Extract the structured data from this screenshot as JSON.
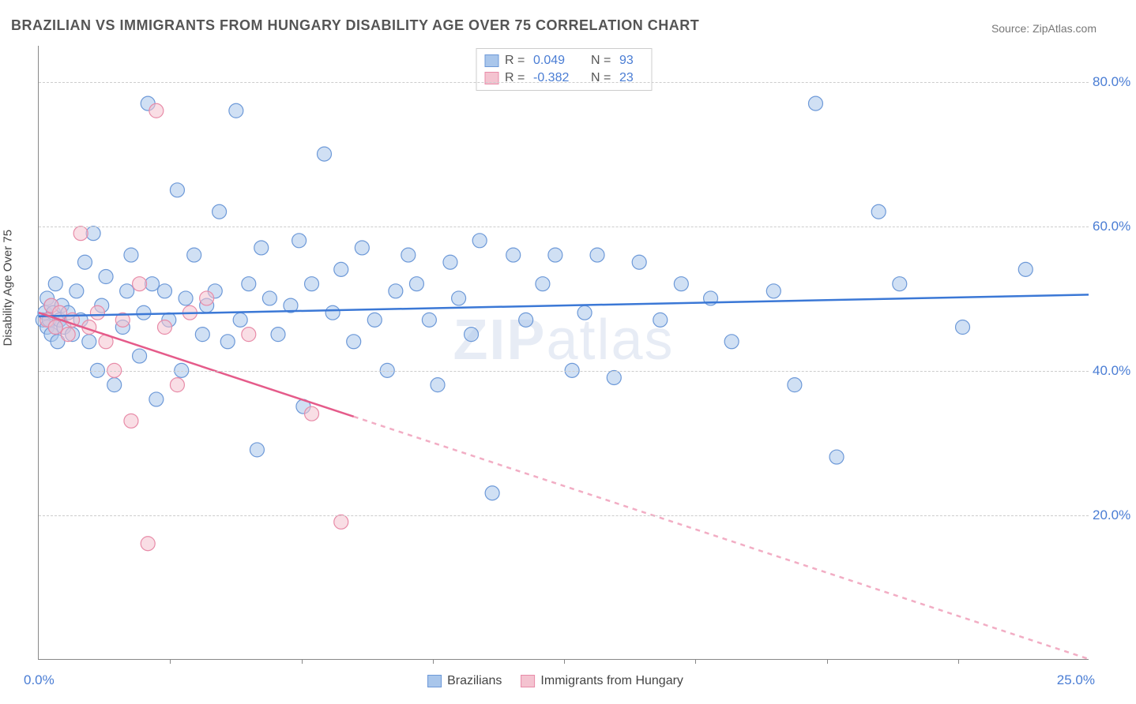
{
  "title": "BRAZILIAN VS IMMIGRANTS FROM HUNGARY DISABILITY AGE OVER 75 CORRELATION CHART",
  "source": "Source: ZipAtlas.com",
  "ylabel": "Disability Age Over 75",
  "watermark_a": "ZIP",
  "watermark_b": "atlas",
  "chart": {
    "type": "scatter",
    "xlim": [
      0,
      25
    ],
    "ylim": [
      0,
      85
    ],
    "yticks": [
      20,
      40,
      60,
      80
    ],
    "ytick_labels": [
      "20.0%",
      "40.0%",
      "60.0%",
      "80.0%"
    ],
    "xtick_marks": [
      3.125,
      6.25,
      9.375,
      12.5,
      15.625,
      18.75,
      21.875
    ],
    "xaxis_label_min": "0.0%",
    "xaxis_label_max": "25.0%",
    "background_color": "#ffffff",
    "grid_color": "#cccccc",
    "series": [
      {
        "name": "Brazilians",
        "color_fill": "#a9c6eb",
        "color_stroke": "#6d99d8",
        "marker_radius": 9,
        "fill_opacity": 0.55,
        "R": "0.049",
        "N": "93",
        "trend": {
          "y_at_x0": 47.5,
          "y_at_xmax": 50.5,
          "solid_until_x": 25,
          "color": "#3b78d6",
          "width": 2.5
        },
        "points": [
          [
            0.1,
            47
          ],
          [
            0.15,
            48
          ],
          [
            0.2,
            46
          ],
          [
            0.2,
            50
          ],
          [
            0.25,
            47
          ],
          [
            0.3,
            45
          ],
          [
            0.3,
            49
          ],
          [
            0.35,
            48
          ],
          [
            0.4,
            46
          ],
          [
            0.4,
            52
          ],
          [
            0.45,
            44
          ],
          [
            0.5,
            47
          ],
          [
            0.55,
            49
          ],
          [
            0.6,
            46
          ],
          [
            0.7,
            48
          ],
          [
            0.8,
            45
          ],
          [
            0.9,
            51
          ],
          [
            1.0,
            47
          ],
          [
            1.1,
            55
          ],
          [
            1.2,
            44
          ],
          [
            1.3,
            59
          ],
          [
            1.4,
            40
          ],
          [
            1.5,
            49
          ],
          [
            1.6,
            53
          ],
          [
            1.8,
            38
          ],
          [
            2.0,
            46
          ],
          [
            2.1,
            51
          ],
          [
            2.2,
            56
          ],
          [
            2.4,
            42
          ],
          [
            2.5,
            48
          ],
          [
            2.6,
            77
          ],
          [
            2.7,
            52
          ],
          [
            2.8,
            36
          ],
          [
            3.0,
            51
          ],
          [
            3.1,
            47
          ],
          [
            3.3,
            65
          ],
          [
            3.4,
            40
          ],
          [
            3.5,
            50
          ],
          [
            3.7,
            56
          ],
          [
            3.9,
            45
          ],
          [
            4.0,
            49
          ],
          [
            4.2,
            51
          ],
          [
            4.3,
            62
          ],
          [
            4.5,
            44
          ],
          [
            4.7,
            76
          ],
          [
            4.8,
            47
          ],
          [
            5.0,
            52
          ],
          [
            5.2,
            29
          ],
          [
            5.3,
            57
          ],
          [
            5.5,
            50
          ],
          [
            5.7,
            45
          ],
          [
            6.0,
            49
          ],
          [
            6.2,
            58
          ],
          [
            6.3,
            35
          ],
          [
            6.5,
            52
          ],
          [
            6.8,
            70
          ],
          [
            7.0,
            48
          ],
          [
            7.2,
            54
          ],
          [
            7.5,
            44
          ],
          [
            7.7,
            57
          ],
          [
            8.0,
            47
          ],
          [
            8.3,
            40
          ],
          [
            8.5,
            51
          ],
          [
            8.8,
            56
          ],
          [
            9.0,
            52
          ],
          [
            9.3,
            47
          ],
          [
            9.5,
            38
          ],
          [
            9.8,
            55
          ],
          [
            10.0,
            50
          ],
          [
            10.3,
            45
          ],
          [
            10.5,
            58
          ],
          [
            10.8,
            23
          ],
          [
            11.3,
            56
          ],
          [
            11.6,
            47
          ],
          [
            12.0,
            52
          ],
          [
            12.3,
            56
          ],
          [
            12.7,
            40
          ],
          [
            13.0,
            48
          ],
          [
            13.3,
            56
          ],
          [
            13.7,
            39
          ],
          [
            14.3,
            55
          ],
          [
            14.8,
            47
          ],
          [
            15.3,
            52
          ],
          [
            16.0,
            50
          ],
          [
            16.5,
            44
          ],
          [
            17.5,
            51
          ],
          [
            18.0,
            38
          ],
          [
            18.5,
            77
          ],
          [
            19.0,
            28
          ],
          [
            20.0,
            62
          ],
          [
            20.5,
            52
          ],
          [
            22.0,
            46
          ],
          [
            23.5,
            54
          ]
        ]
      },
      {
        "name": "Immigrants from Hungary",
        "color_fill": "#f4c3d0",
        "color_stroke": "#e88ba8",
        "marker_radius": 9,
        "fill_opacity": 0.55,
        "R": "-0.382",
        "N": "23",
        "trend": {
          "y_at_x0": 48,
          "y_at_xmax": 0,
          "solid_until_x": 7.5,
          "color": "#e55b8a",
          "width": 2.5
        },
        "points": [
          [
            0.2,
            47
          ],
          [
            0.3,
            49
          ],
          [
            0.4,
            46
          ],
          [
            0.5,
            48
          ],
          [
            0.7,
            45
          ],
          [
            0.8,
            47
          ],
          [
            1.0,
            59
          ],
          [
            1.2,
            46
          ],
          [
            1.4,
            48
          ],
          [
            1.6,
            44
          ],
          [
            1.8,
            40
          ],
          [
            2.0,
            47
          ],
          [
            2.2,
            33
          ],
          [
            2.4,
            52
          ],
          [
            2.6,
            16
          ],
          [
            2.8,
            76
          ],
          [
            3.0,
            46
          ],
          [
            3.3,
            38
          ],
          [
            3.6,
            48
          ],
          [
            4.0,
            50
          ],
          [
            5.0,
            45
          ],
          [
            6.5,
            34
          ],
          [
            7.2,
            19
          ]
        ]
      }
    ]
  },
  "legend_top": {
    "R_label": "R =",
    "N_label": "N ="
  },
  "legend_bottom": {
    "items": [
      "Brazilians",
      "Immigrants from Hungary"
    ]
  }
}
